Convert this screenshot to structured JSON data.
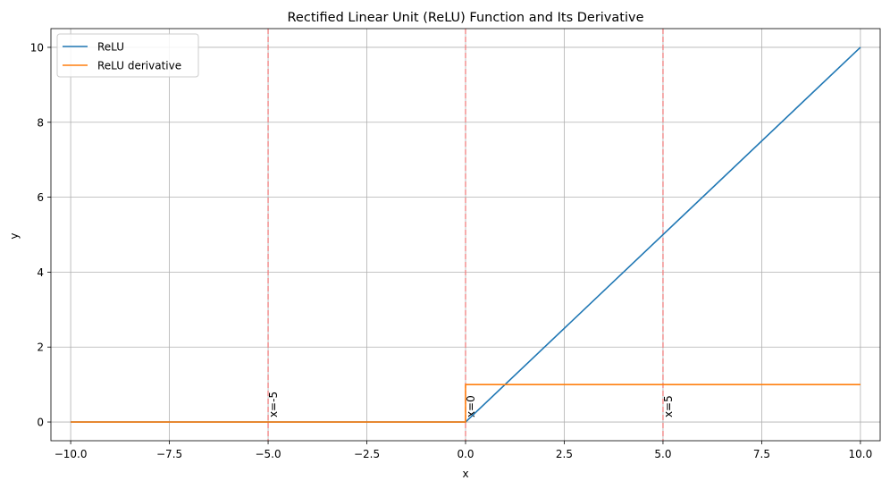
{
  "chart_data": {
    "type": "line",
    "title": "Rectified Linear Unit (ReLU) Function and Its Derivative",
    "xlabel": "x",
    "ylabel": "y",
    "xlim": [
      -10.5,
      10.5
    ],
    "ylim": [
      -0.5,
      10.5
    ],
    "xticks": [
      -10.0,
      -7.5,
      -5.0,
      -2.5,
      0.0,
      2.5,
      5.0,
      7.5,
      10.0
    ],
    "xtick_labels": [
      "−10.0",
      "−7.5",
      "−5.0",
      "−2.5",
      "0.0",
      "2.5",
      "5.0",
      "7.5",
      "10.0"
    ],
    "yticks": [
      0,
      2,
      4,
      6,
      8,
      10
    ],
    "ytick_labels": [
      "0",
      "2",
      "4",
      "6",
      "8",
      "10"
    ],
    "grid": true,
    "legend_position": "top-left",
    "series": [
      {
        "name": "ReLU",
        "color": "#1f77b4",
        "x": [
          -10,
          0,
          10
        ],
        "y": [
          0,
          0,
          10
        ]
      },
      {
        "name": "ReLU derivative",
        "color": "#ff7f0e",
        "x": [
          -10,
          0,
          0,
          10
        ],
        "y": [
          0,
          0,
          1,
          1
        ]
      }
    ],
    "vlines": [
      {
        "x": -5,
        "label": "x=-5",
        "color": "#f08080"
      },
      {
        "x": 0,
        "label": "x=0",
        "color": "#f08080"
      },
      {
        "x": 5,
        "label": "x=5",
        "color": "#f08080"
      }
    ]
  }
}
